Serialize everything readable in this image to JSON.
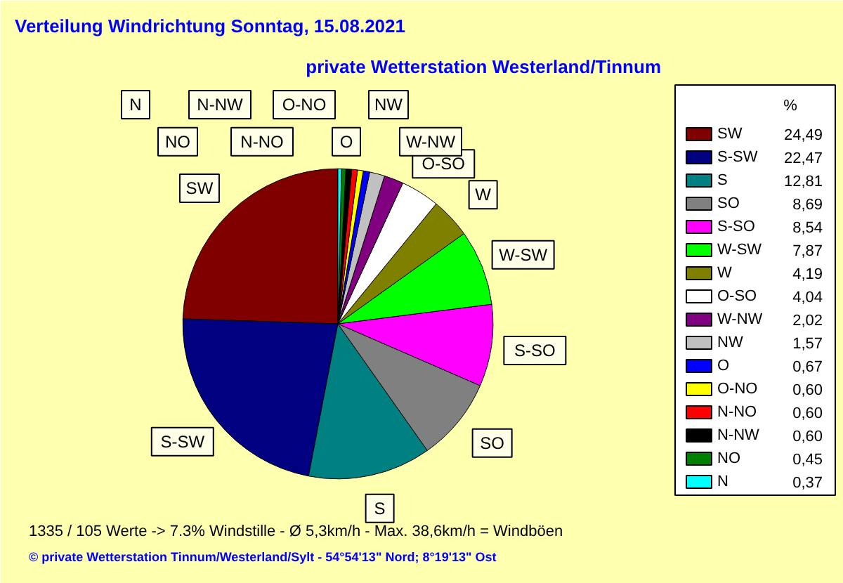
{
  "chart_data": {
    "type": "pie",
    "title": "Verteilung Windrichtung   Sonntag, 15.08.2021",
    "subtitle": "private Wetterstation Westerland/Tinnum",
    "legend_title": "%",
    "legend": "right",
    "categories": [
      "SW",
      "S-SW",
      "S",
      "SO",
      "S-SO",
      "W-SW",
      "W",
      "O-SO",
      "W-NW",
      "NW",
      "O",
      "O-NO",
      "N-NO",
      "N-NW",
      "NO",
      "N"
    ],
    "values": [
      24.49,
      22.47,
      12.81,
      8.69,
      8.54,
      7.87,
      4.19,
      4.04,
      2.02,
      1.57,
      0.67,
      0.6,
      0.6,
      0.6,
      0.45,
      0.37
    ],
    "value_labels": [
      "24,49",
      "22,47",
      "12,81",
      "8,69",
      "8,54",
      "7,87",
      "4,19",
      "4,04",
      "2,02",
      "1,57",
      "0,67",
      "0,60",
      "0,60",
      "0,60",
      "0,45",
      "0,37"
    ],
    "colors": [
      "#800000",
      "#000080",
      "#008080",
      "#808080",
      "#ff00ff",
      "#00ff00",
      "#808000",
      "#ffffff",
      "#800080",
      "#c0c0c0",
      "#0000ff",
      "#ffff00",
      "#ff0000",
      "#000000",
      "#008000",
      "#00ffff"
    ],
    "annotations": [
      "1335 / 105 Werte  -> 7.3% Windstille   -   Ø 5,3km/h  -  Max. 38,6km/h = Windböen",
      "© private Wetterstation Tinnum/Westerland/Sylt  -  54°54'13\" Nord; 8°19'13\" Ost"
    ]
  }
}
